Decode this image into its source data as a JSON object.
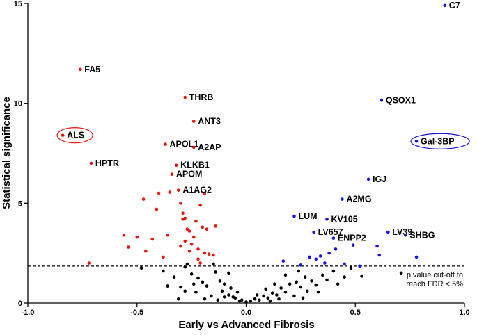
{
  "chart_data": {
    "type": "scatter",
    "title": "",
    "xlabel": "Early vs Advanced Fibrosis",
    "ylabel": "Statistical significance",
    "xlim": [
      -1.0,
      1.0
    ],
    "ylim": [
      0,
      15
    ],
    "xticks": [
      -1.0,
      -0.5,
      0.0,
      0.5,
      1.0
    ],
    "xtick_labels": [
      "-1.0",
      "-0.5",
      "0.0",
      "0.5",
      "1.0"
    ],
    "yticks": [
      0,
      5,
      10,
      15
    ],
    "ytick_labels": [
      "0",
      "5",
      "10",
      "15"
    ],
    "grid": false,
    "cutoff": {
      "y": 1.85,
      "label_line1": "p value cut-off to",
      "label_line2": "reach FDR < 5%"
    },
    "colors": {
      "down": "#e8150c",
      "up": "#1414e6",
      "ns": "#000000",
      "highlight_ring_red": "#e8150c",
      "highlight_ring_blue": "#1414e6"
    },
    "labeled_points": [
      {
        "name": "C7",
        "x": 0.91,
        "y": 14.9,
        "group": "up"
      },
      {
        "name": "FA5",
        "x": -0.76,
        "y": 11.7,
        "group": "down"
      },
      {
        "name": "THRB",
        "x": -0.28,
        "y": 10.3,
        "group": "down"
      },
      {
        "name": "QSOX1",
        "x": 0.62,
        "y": 10.15,
        "group": "up"
      },
      {
        "name": "ANT3",
        "x": -0.24,
        "y": 9.1,
        "group": "down"
      },
      {
        "name": "ALS",
        "x": -0.84,
        "y": 8.4,
        "group": "down",
        "highlight": true
      },
      {
        "name": "Gal-3BP",
        "x": 0.78,
        "y": 8.1,
        "group": "up",
        "highlight": true
      },
      {
        "name": "APOL1",
        "x": -0.37,
        "y": 7.95,
        "group": "down"
      },
      {
        "name": "A2AP",
        "x": -0.24,
        "y": 7.8,
        "group": "down"
      },
      {
        "name": "HPTR",
        "x": -0.71,
        "y": 7.0,
        "group": "down"
      },
      {
        "name": "KLKB1",
        "x": -0.32,
        "y": 6.9,
        "group": "down"
      },
      {
        "name": "APOM",
        "x": -0.34,
        "y": 6.45,
        "group": "down"
      },
      {
        "name": "IGJ",
        "x": 0.56,
        "y": 6.2,
        "group": "up"
      },
      {
        "name": "A1AG2",
        "x": -0.31,
        "y": 5.65,
        "group": "down"
      },
      {
        "name": "A2MG",
        "x": 0.44,
        "y": 5.2,
        "group": "up"
      },
      {
        "name": "LUM",
        "x": 0.22,
        "y": 4.35,
        "group": "up"
      },
      {
        "name": "KV105",
        "x": 0.37,
        "y": 4.2,
        "group": "up"
      },
      {
        "name": "LV657",
        "x": 0.31,
        "y": 3.55,
        "group": "up"
      },
      {
        "name": "LV39",
        "x": 0.65,
        "y": 3.55,
        "group": "up"
      },
      {
        "name": "SHBG",
        "x": 0.73,
        "y": 3.4,
        "group": "up"
      },
      {
        "name": "ENPP2",
        "x": 0.4,
        "y": 3.25,
        "group": "up"
      }
    ],
    "series": [
      {
        "name": "down",
        "points": [
          [
            -0.72,
            2.0
          ],
          [
            -0.56,
            3.4
          ],
          [
            -0.54,
            2.8
          ],
          [
            -0.5,
            3.3
          ],
          [
            -0.47,
            5.2
          ],
          [
            -0.46,
            2.6
          ],
          [
            -0.43,
            3.2
          ],
          [
            -0.41,
            4.7
          ],
          [
            -0.38,
            2.3
          ],
          [
            -0.36,
            3.4
          ],
          [
            -0.4,
            5.5
          ],
          [
            -0.35,
            5.55
          ],
          [
            -0.3,
            5.0
          ],
          [
            -0.29,
            4.5
          ],
          [
            -0.28,
            4.25
          ],
          [
            -0.29,
            4.2
          ],
          [
            -0.27,
            3.7
          ],
          [
            -0.26,
            3.6
          ],
          [
            -0.28,
            3.1
          ],
          [
            -0.25,
            2.95
          ],
          [
            -0.26,
            2.6
          ],
          [
            -0.22,
            2.2
          ],
          [
            -0.22,
            2.7
          ],
          [
            -0.19,
            2.5
          ],
          [
            -0.17,
            2.45
          ],
          [
            -0.15,
            2.4
          ],
          [
            -0.2,
            3.8
          ],
          [
            -0.18,
            3.7
          ],
          [
            -0.14,
            3.85
          ],
          [
            -0.23,
            4.1
          ],
          [
            -0.21,
            4.9
          ],
          [
            -0.19,
            5.5
          ],
          [
            -0.24,
            3.3
          ],
          [
            -0.21,
            2.0
          ],
          [
            -0.3,
            2.85
          ]
        ]
      },
      {
        "name": "up",
        "points": [
          [
            0.17,
            2.1
          ],
          [
            0.25,
            1.9
          ],
          [
            0.29,
            2.3
          ],
          [
            0.32,
            2.2
          ],
          [
            0.36,
            2.0
          ],
          [
            0.38,
            2.5
          ],
          [
            0.41,
            2.7
          ],
          [
            0.45,
            1.95
          ],
          [
            0.49,
            2.9
          ],
          [
            0.52,
            1.85
          ],
          [
            0.6,
            2.85
          ],
          [
            0.61,
            2.4
          ],
          [
            0.78,
            2.3
          ],
          [
            0.34,
            2.35
          ]
        ]
      },
      {
        "name": "ns",
        "points": [
          [
            -0.48,
            1.75
          ],
          [
            -0.38,
            1.6
          ],
          [
            -0.33,
            1.3
          ],
          [
            -0.3,
            0.8
          ],
          [
            -0.28,
            0.6
          ],
          [
            -0.31,
            0.2
          ],
          [
            -0.28,
            1.8
          ],
          [
            -0.25,
            1.45
          ],
          [
            -0.22,
            1.25
          ],
          [
            -0.23,
            0.55
          ],
          [
            -0.2,
            1.05
          ],
          [
            -0.18,
            0.85
          ],
          [
            -0.16,
            0.35
          ],
          [
            -0.14,
            1.55
          ],
          [
            -0.12,
            1.1
          ],
          [
            -0.11,
            0.6
          ],
          [
            -0.1,
            0.95
          ],
          [
            -0.08,
            0.4
          ],
          [
            -0.07,
            0.75
          ],
          [
            -0.05,
            0.25
          ],
          [
            -0.04,
            0.55
          ],
          [
            -0.02,
            0.15
          ],
          [
            0.0,
            0.05
          ],
          [
            -0.36,
            0.85
          ],
          [
            -0.24,
            0.95
          ],
          [
            -0.19,
            0.2
          ],
          [
            -0.13,
            0.15
          ],
          [
            -0.1,
            0.3
          ],
          [
            -0.06,
            0.3
          ],
          [
            -0.03,
            0.1
          ],
          [
            -0.27,
            1.95
          ],
          [
            -0.15,
            1.95
          ],
          [
            -0.08,
            1.5
          ],
          [
            0.02,
            0.1
          ],
          [
            0.04,
            0.2
          ],
          [
            0.06,
            0.15
          ],
          [
            0.08,
            0.35
          ],
          [
            0.1,
            0.25
          ],
          [
            0.12,
            0.5
          ],
          [
            0.14,
            0.4
          ],
          [
            0.16,
            0.75
          ],
          [
            0.18,
            0.55
          ],
          [
            0.2,
            0.95
          ],
          [
            0.22,
            0.35
          ],
          [
            0.23,
            1.05
          ],
          [
            0.25,
            0.8
          ],
          [
            0.27,
            1.3
          ],
          [
            0.28,
            0.6
          ],
          [
            0.3,
            1.1
          ],
          [
            0.32,
            0.9
          ],
          [
            0.35,
            1.4
          ],
          [
            0.37,
            1.15
          ],
          [
            0.4,
            1.6
          ],
          [
            0.42,
            0.95
          ],
          [
            0.45,
            1.3
          ],
          [
            0.48,
            1.75
          ],
          [
            0.53,
            1.35
          ],
          [
            0.71,
            1.5
          ],
          [
            0.24,
            1.6
          ],
          [
            0.18,
            1.4
          ],
          [
            0.13,
            0.95
          ],
          [
            0.09,
            0.7
          ],
          [
            0.15,
            0.2
          ],
          [
            0.26,
            0.25
          ],
          [
            0.33,
            0.55
          ],
          [
            0.05,
            0.4
          ],
          [
            0.11,
            0.1
          ]
        ]
      }
    ]
  }
}
